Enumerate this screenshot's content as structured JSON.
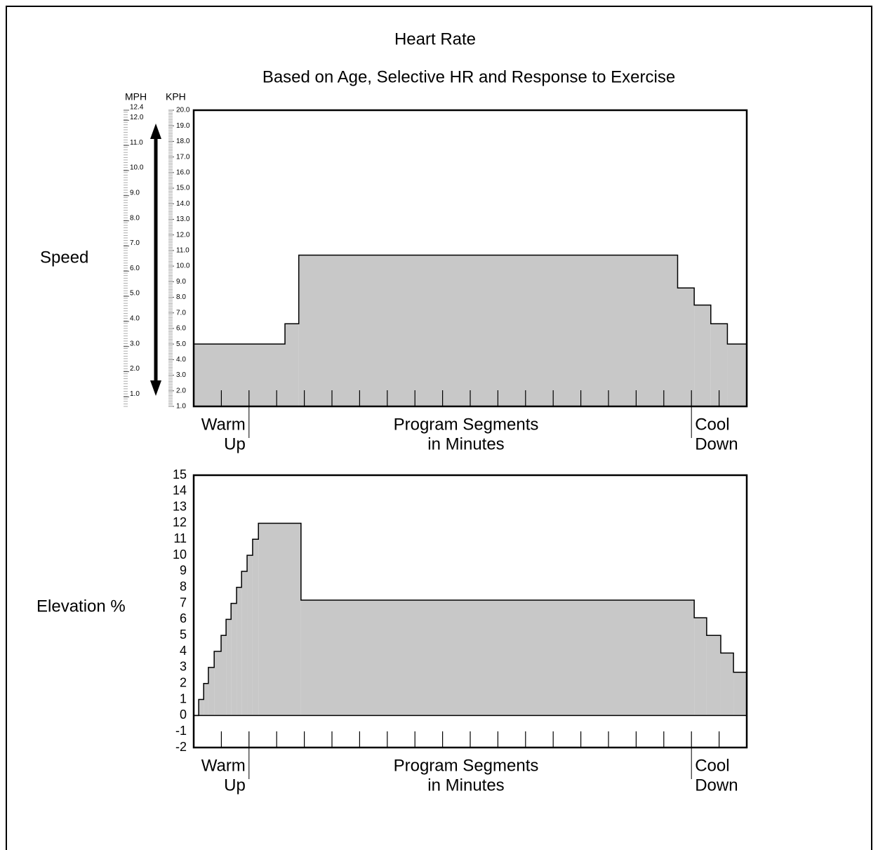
{
  "chart_data": [
    {
      "type": "step",
      "title": "Heart Rate",
      "subtitle": "Based on Age, Selective HR and Response to Exercise",
      "y_label": "Speed",
      "y_axis_label": "KPH",
      "y2_axis_label": "MPH",
      "xlabel": [
        "Program Segments",
        "in Minutes"
      ],
      "annotations": [
        [
          "Warm",
          "Up"
        ],
        [
          "Cool",
          "Down"
        ]
      ],
      "x": [
        0,
        3.3,
        3.8,
        17.5,
        18.1,
        18.7,
        19.3
      ],
      "values": [
        5.0,
        6.3,
        10.7,
        8.6,
        7.5,
        6.3,
        5.0
      ],
      "color": "#c8c8c8",
      "xlim": [
        0,
        20
      ],
      "xticks": [
        1,
        2,
        3,
        4,
        5,
        6,
        7,
        8,
        9,
        10,
        11,
        12,
        13,
        14,
        15,
        16,
        17,
        18,
        19
      ],
      "ylim": [
        1,
        20
      ],
      "yticks": [
        {
          "value": 1,
          "label": "1.0"
        },
        {
          "value": 2,
          "label": "2.0"
        },
        {
          "value": 3,
          "label": "3.0"
        },
        {
          "value": 4,
          "label": "4.0"
        },
        {
          "value": 5,
          "label": "5.0"
        },
        {
          "value": 6,
          "label": "6.0"
        },
        {
          "value": 7,
          "label": "7.0"
        },
        {
          "value": 8,
          "label": "8.0"
        },
        {
          "value": 9,
          "label": "9.0"
        },
        {
          "value": 10,
          "label": "10.0"
        },
        {
          "value": 11,
          "label": "11.0"
        },
        {
          "value": 12,
          "label": "12.0"
        },
        {
          "value": 13,
          "label": "13.0"
        },
        {
          "value": 14,
          "label": "14.0"
        },
        {
          "value": 15,
          "label": "15.0"
        },
        {
          "value": 16,
          "label": "16.0"
        },
        {
          "value": 17,
          "label": "17.0"
        },
        {
          "value": 18,
          "label": "18.0"
        },
        {
          "value": 19,
          "label": "19.0"
        },
        {
          "value": 20,
          "label": "20.0"
        }
      ],
      "yminor": 0.1,
      "y2lim": [
        0.62,
        12.4
      ],
      "y2ticks": [
        {
          "value": 1,
          "label": "1.0"
        },
        {
          "value": 2,
          "label": "2.0"
        },
        {
          "value": 3,
          "label": "3.0"
        },
        {
          "value": 4,
          "label": "4.0"
        },
        {
          "value": 5,
          "label": "5.0"
        },
        {
          "value": 6,
          "label": "6.0"
        },
        {
          "value": 7,
          "label": "7.0"
        },
        {
          "value": 8,
          "label": "8.0"
        },
        {
          "value": 9,
          "label": "9.0"
        },
        {
          "value": 10,
          "label": "10.0"
        },
        {
          "value": 11,
          "label": "11.0"
        },
        {
          "value": 12,
          "label": "12.0"
        },
        {
          "value": 12.4,
          "label": "12.4"
        }
      ],
      "y2minor": 0.1
    },
    {
      "type": "step",
      "y_label": "Elevation %",
      "xlabel": [
        "Program Segments",
        "in Minutes"
      ],
      "annotations": [
        [
          "Warm",
          "Up"
        ],
        [
          "Cool",
          "Down"
        ]
      ],
      "x": [
        0,
        0.18,
        0.36,
        0.53,
        0.74,
        0.99,
        1.17,
        1.35,
        1.55,
        1.73,
        1.93,
        2.13,
        2.34,
        3.88,
        18.1,
        18.55,
        19.06,
        19.52
      ],
      "values": [
        0,
        1,
        2,
        3,
        4,
        5,
        6,
        7,
        8,
        9,
        10,
        11,
        12,
        7.2,
        6.1,
        5.0,
        3.9,
        2.7
      ],
      "color": "#c8c8c8",
      "xlim": [
        0,
        20
      ],
      "xticks": [
        1,
        2,
        3,
        4,
        5,
        6,
        7,
        8,
        9,
        10,
        11,
        12,
        13,
        14,
        15,
        16,
        17,
        18,
        19
      ],
      "ylim": [
        -2,
        15
      ],
      "yticks": [
        -2,
        -1,
        0,
        1,
        2,
        3,
        4,
        5,
        6,
        7,
        8,
        9,
        10,
        11,
        12,
        13,
        14,
        15
      ]
    }
  ]
}
